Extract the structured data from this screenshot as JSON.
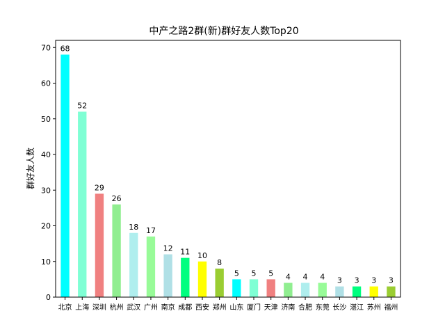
{
  "chart_data": {
    "type": "bar",
    "title": "中产之路2群(新)群好友人数Top20",
    "xlabel": "",
    "ylabel": "群好友人数",
    "ylim": [
      0,
      72
    ],
    "yticks": [
      0,
      10,
      20,
      30,
      40,
      50,
      60,
      70
    ],
    "categories": [
      "北京",
      "上海",
      "深圳",
      "杭州",
      "武汉",
      "广州",
      "南京",
      "成都",
      "西安",
      "郑州",
      "山东",
      "厦门",
      "天津",
      "济南",
      "合肥",
      "东莞",
      "长沙",
      "湛江",
      "苏州",
      "福州"
    ],
    "values": [
      68,
      52,
      29,
      26,
      18,
      17,
      12,
      11,
      10,
      8,
      5,
      5,
      5,
      4,
      4,
      4,
      3,
      3,
      3,
      3
    ],
    "colors": [
      "#00ffff",
      "#7fffd4",
      "#f08080",
      "#90ee90",
      "#afeeee",
      "#98fb98",
      "#b0e0e6",
      "#00ff7f",
      "#ffff00",
      "#9acd32",
      "#00ffff",
      "#7fffd4",
      "#f08080",
      "#90ee90",
      "#afeeee",
      "#98fb98",
      "#b0e0e6",
      "#00ff7f",
      "#ffff00",
      "#9acd32"
    ],
    "data_labels": true,
    "grid": false,
    "legend": false
  }
}
